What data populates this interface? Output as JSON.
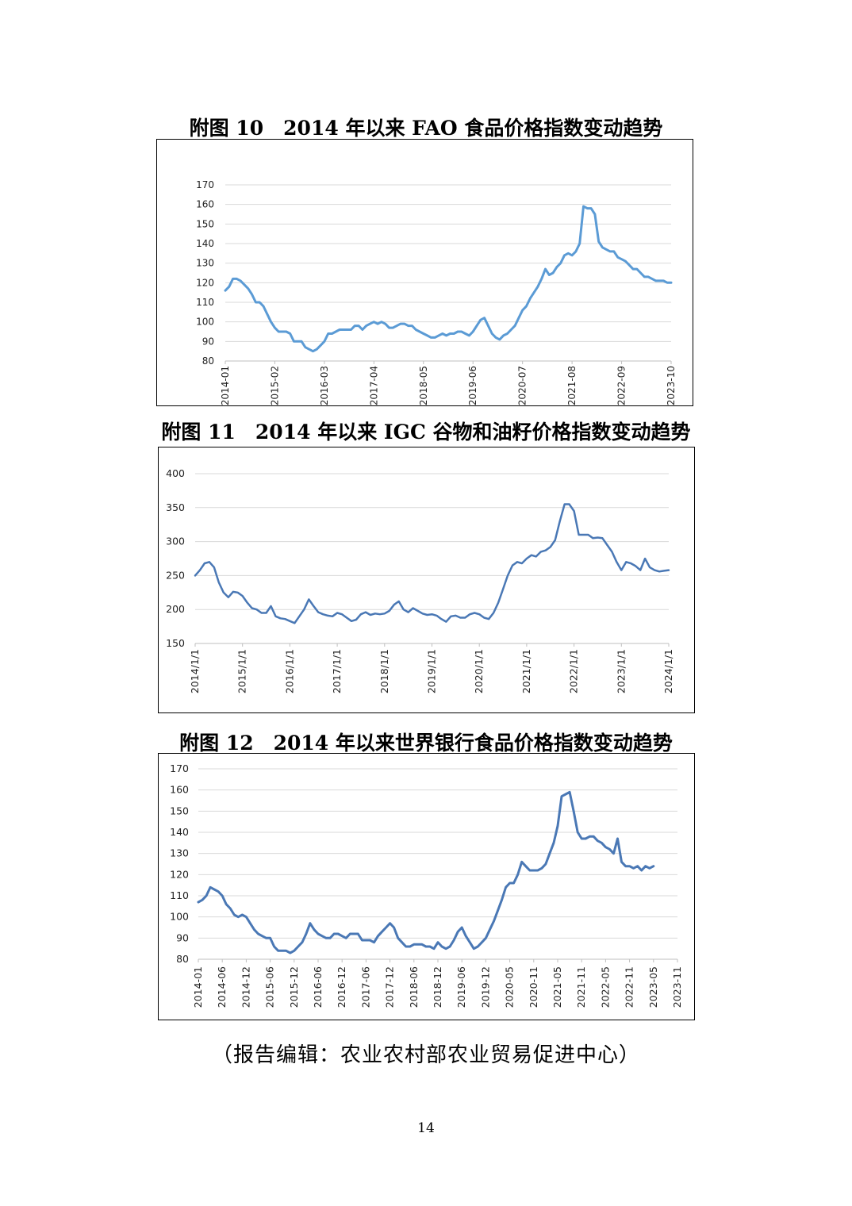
{
  "figures": [
    {
      "title": "附图 10　2014 年以来 FAO 食品价格指数变动趋势",
      "chart_data": {
        "type": "line",
        "color": "#5b9bd5",
        "ylim": [
          80,
          170
        ],
        "yticks": [
          "80",
          "90",
          "100",
          "110",
          "120",
          "130",
          "140",
          "150",
          "160",
          "170"
        ],
        "xticks": [
          "2014-01",
          "2015-02",
          "2016-03",
          "2017-04",
          "2018-05",
          "2019-06",
          "2020-07",
          "2021-08",
          "2022-09",
          "2023-10"
        ],
        "xlim": [
          0,
          117
        ],
        "x_index_start": "2014-01",
        "x_step": "month",
        "values": [
          116,
          118,
          122,
          122,
          121,
          119,
          117,
          114,
          110,
          110,
          108,
          104,
          100,
          97,
          95,
          95,
          95,
          94,
          90,
          90,
          90,
          87,
          86,
          85,
          86,
          88,
          90,
          94,
          94,
          95,
          96,
          96,
          96,
          96,
          98,
          98,
          96,
          98,
          99,
          100,
          99,
          100,
          99,
          97,
          97,
          98,
          99,
          99,
          98,
          98,
          96,
          95,
          94,
          93,
          92,
          92,
          93,
          94,
          93,
          94,
          94,
          95,
          95,
          94,
          93,
          95,
          98,
          101,
          102,
          98,
          94,
          92,
          91,
          93,
          94,
          96,
          98,
          102,
          106,
          108,
          112,
          115,
          118,
          122,
          127,
          124,
          125,
          128,
          130,
          134,
          135,
          134,
          136,
          140,
          159,
          158,
          158,
          155,
          141,
          138,
          137,
          136,
          136,
          133,
          132,
          131,
          129,
          127,
          127,
          125,
          123,
          123,
          122,
          121,
          121,
          121,
          120,
          120
        ],
        "grid": true
      }
    },
    {
      "title": "附图 11　2014 年以来 IGC 谷物和油籽价格指数变动趋势",
      "chart_data": {
        "type": "line",
        "color": "#4a78b5",
        "ylim": [
          150,
          400
        ],
        "yticks": [
          "150",
          "200",
          "250",
          "300",
          "350",
          "400"
        ],
        "xticks": [
          "2014/1/1",
          "2015/1/1",
          "2016/1/1",
          "2017/1/1",
          "2018/1/1",
          "2019/1/1",
          "2020/1/1",
          "2021/1/1",
          "2022/1/1",
          "2023/1/1",
          "2024/1/1"
        ],
        "xlim": [
          2014,
          2024
        ],
        "x": [
          2014.0,
          2014.1,
          2014.2,
          2014.3,
          2014.4,
          2014.5,
          2014.6,
          2014.7,
          2014.8,
          2014.9,
          2015.0,
          2015.1,
          2015.2,
          2015.3,
          2015.4,
          2015.5,
          2015.6,
          2015.7,
          2015.8,
          2015.9,
          2016.0,
          2016.1,
          2016.2,
          2016.3,
          2016.4,
          2016.5,
          2016.6,
          2016.7,
          2016.8,
          2016.9,
          2017.0,
          2017.1,
          2017.2,
          2017.3,
          2017.4,
          2017.5,
          2017.6,
          2017.7,
          2017.8,
          2017.9,
          2018.0,
          2018.1,
          2018.2,
          2018.3,
          2018.4,
          2018.5,
          2018.6,
          2018.7,
          2018.8,
          2018.9,
          2019.0,
          2019.1,
          2019.2,
          2019.3,
          2019.4,
          2019.5,
          2019.6,
          2019.7,
          2019.8,
          2019.9,
          2020.0,
          2020.1,
          2020.2,
          2020.3,
          2020.4,
          2020.5,
          2020.6,
          2020.7,
          2020.8,
          2020.9,
          2021.0,
          2021.1,
          2021.2,
          2021.3,
          2021.4,
          2021.5,
          2021.6,
          2021.7,
          2021.8,
          2021.9,
          2022.0,
          2022.1,
          2022.2,
          2022.3,
          2022.4,
          2022.5,
          2022.6,
          2022.7,
          2022.8,
          2022.9,
          2023.0,
          2023.1,
          2023.2,
          2023.3,
          2023.4,
          2023.5,
          2023.6,
          2023.7,
          2023.8,
          2023.9,
          2024.0
        ],
        "values": [
          250,
          258,
          268,
          270,
          262,
          240,
          225,
          218,
          226,
          225,
          220,
          210,
          202,
          200,
          195,
          195,
          205,
          190,
          187,
          186,
          183,
          180,
          190,
          200,
          215,
          205,
          196,
          193,
          191,
          190,
          195,
          193,
          188,
          183,
          185,
          193,
          196,
          192,
          194,
          193,
          194,
          198,
          207,
          212,
          200,
          196,
          202,
          198,
          194,
          192,
          193,
          191,
          186,
          182,
          190,
          191,
          188,
          188,
          193,
          195,
          193,
          188,
          186,
          195,
          210,
          230,
          250,
          265,
          270,
          268,
          275,
          280,
          278,
          285,
          287,
          292,
          302,
          330,
          355,
          355,
          345,
          310,
          310,
          310,
          305,
          306,
          305,
          295,
          285,
          270,
          258,
          270,
          268,
          264,
          258,
          275,
          262,
          258,
          256,
          257,
          258
        ],
        "grid": true
      }
    },
    {
      "title": "附图 12　2014 年以来世界银行食品价格指数变动趋势",
      "chart_data": {
        "type": "line",
        "color": "#4a78b5",
        "ylim": [
          80,
          170
        ],
        "yticks": [
          "80",
          "90",
          "100",
          "110",
          "120",
          "130",
          "140",
          "150",
          "160",
          "170"
        ],
        "xticks": [
          "2014-01",
          "2014-06",
          "2014-12",
          "2015-06",
          "2015-12",
          "2016-06",
          "2016-12",
          "2017-06",
          "2017-12",
          "2018-06",
          "2018-12",
          "2019-06",
          "2019-12",
          "2020-05",
          "2020-11",
          "2021-05",
          "2021-11",
          "2022-05",
          "2022-11",
          "2023-05",
          "2023-11"
        ],
        "xlim": [
          0,
          120
        ],
        "x_index_start": "2014-01",
        "x_step": "month",
        "values": [
          107,
          108,
          110,
          114,
          113,
          112,
          110,
          106,
          104,
          101,
          100,
          101,
          100,
          97,
          94,
          92,
          91,
          90,
          90,
          86,
          84,
          84,
          84,
          83,
          84,
          86,
          88,
          92,
          97,
          94,
          92,
          91,
          90,
          90,
          92,
          92,
          91,
          90,
          92,
          92,
          92,
          89,
          89,
          89,
          88,
          91,
          93,
          95,
          97,
          95,
          90,
          88,
          86,
          86,
          87,
          87,
          87,
          86,
          86,
          85,
          88,
          86,
          85,
          86,
          89,
          93,
          95,
          91,
          88,
          85,
          86,
          88,
          90,
          94,
          98,
          103,
          108,
          114,
          116,
          116,
          120,
          126,
          124,
          122,
          122,
          122,
          123,
          125,
          130,
          135,
          143,
          157,
          158,
          159,
          150,
          140,
          137,
          137,
          138,
          138,
          136,
          135,
          133,
          132,
          130,
          137,
          126,
          124,
          124,
          123,
          124,
          122,
          124,
          123,
          124
        ]
      }
    }
  ],
  "footer": "（报告编辑：农业农村部农业贸易促进中心）",
  "page_number": "14"
}
